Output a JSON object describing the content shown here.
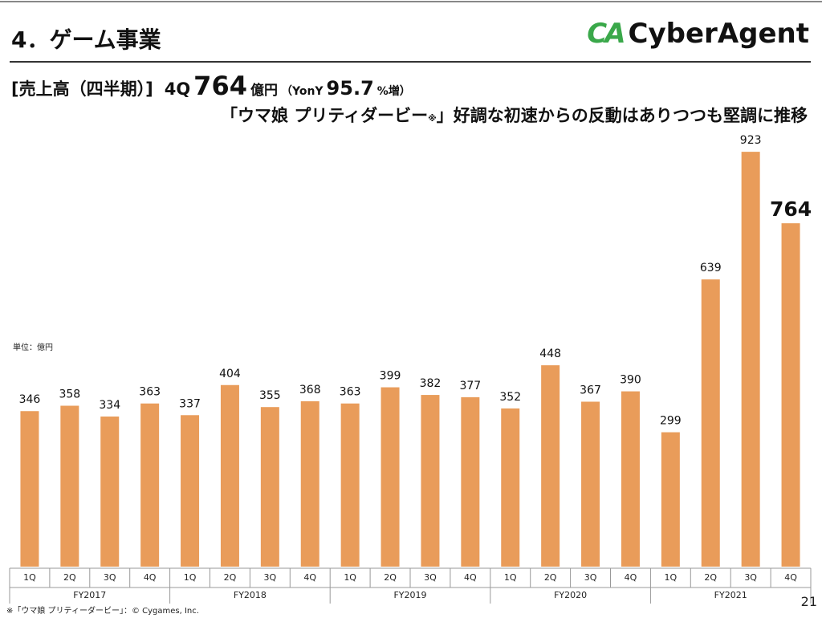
{
  "header": {
    "title": "4．ゲーム事業",
    "logo_mark": "CA",
    "logo_text": "CyberAgent"
  },
  "headline": {
    "label": "[売上高（四半期）]",
    "quarter": "4Q",
    "value": "764",
    "unit": "億円",
    "yoy_prefix": "（YonY",
    "yoy": "95.7",
    "yoy_suffix": "%増）"
  },
  "subheadline": {
    "before": "「ウマ娘 プリティダービー",
    "mark": "※",
    "after": "」好調な初速からの反動はありつつも堅調に推移"
  },
  "unit_note": "単位：億円",
  "footnote": "※「ウマ娘 プリティーダービー」：© Cygames, Inc.",
  "page_number": "21",
  "chart_data": {
    "type": "bar",
    "color": "#e99c5a",
    "categories": [
      "1Q",
      "2Q",
      "3Q",
      "4Q",
      "1Q",
      "2Q",
      "3Q",
      "4Q",
      "1Q",
      "2Q",
      "3Q",
      "4Q",
      "1Q",
      "2Q",
      "3Q",
      "4Q",
      "1Q",
      "2Q",
      "3Q",
      "4Q"
    ],
    "groups": [
      "FY2017",
      "FY2018",
      "FY2019",
      "FY2020",
      "FY2021"
    ],
    "values": [
      346,
      358,
      334,
      363,
      337,
      404,
      355,
      368,
      363,
      399,
      382,
      377,
      352,
      448,
      367,
      390,
      299,
      639,
      923,
      764
    ]
  }
}
